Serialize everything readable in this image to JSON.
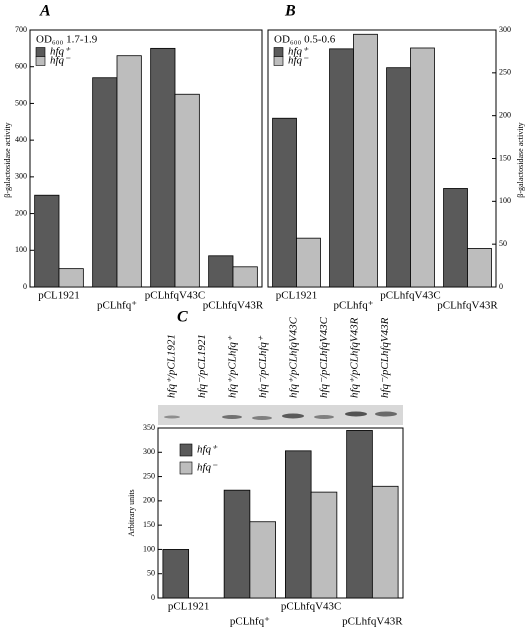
{
  "chart_data": [
    {
      "type": "bar",
      "panel": "A",
      "annotation": "OD₆₀₀ 1.7-1.9",
      "y_label": "β-galactosidase activity",
      "categories": [
        "pCL1921",
        "pCLhfq⁺",
        "pCLhfqV43C",
        "pCLhfqV43R"
      ],
      "series": [
        {
          "name": "hfq⁺",
          "color": "#5a5a5a",
          "values": [
            250,
            570,
            650,
            85
          ]
        },
        {
          "name": "hfq⁻",
          "color": "#bdbdbd",
          "values": [
            50,
            630,
            525,
            55
          ]
        }
      ],
      "ylim": [
        0,
        700
      ],
      "yticks": [
        0,
        100,
        200,
        300,
        400,
        500,
        600,
        700
      ]
    },
    {
      "type": "bar",
      "panel": "B",
      "annotation": "OD₆₀₀ 0.5-0.6",
      "y_label": "β-galactosidase activity",
      "categories": [
        "pCL1921",
        "pCLhfq⁺",
        "pCLhfqV43C",
        "pCLhfqV43R"
      ],
      "series": [
        {
          "name": "hfq⁺",
          "color": "#5a5a5a",
          "values": [
            197,
            278,
            256,
            115
          ]
        },
        {
          "name": "hfq⁻",
          "color": "#bdbdbd",
          "values": [
            57,
            295,
            279,
            45
          ]
        }
      ],
      "ylim": [
        0,
        300
      ],
      "yticks": [
        0,
        50,
        100,
        150,
        200,
        250,
        300
      ]
    },
    {
      "type": "bar",
      "panel": "C",
      "y_label": "Arbitrary units",
      "lane_labels": [
        "hfq⁺/pCL1921",
        "hfq⁻/pCL1921",
        "hfq⁺/pCLhfq⁺",
        "hfq⁻/pCLhfq⁺",
        "hfq⁺/pCLhfqV43C",
        "hfq⁻/pCLhfqV43C",
        "hfq⁺/pCLhfqV43R",
        "hfq⁻/pCLhfqV43R"
      ],
      "categories": [
        "pCL1921",
        "pCLhfq⁺",
        "pCLhfqV43C",
        "pCLhfqV43R"
      ],
      "series": [
        {
          "name": "hfq⁺",
          "color": "#5a5a5a",
          "values": [
            100,
            222,
            303,
            345
          ]
        },
        {
          "name": "hfq⁻",
          "color": "#bdbdbd",
          "values": [
            null,
            157,
            218,
            230
          ]
        }
      ],
      "ylim": [
        0,
        350
      ],
      "yticks": [
        0,
        50,
        100,
        150,
        200,
        250,
        300,
        350
      ]
    }
  ]
}
